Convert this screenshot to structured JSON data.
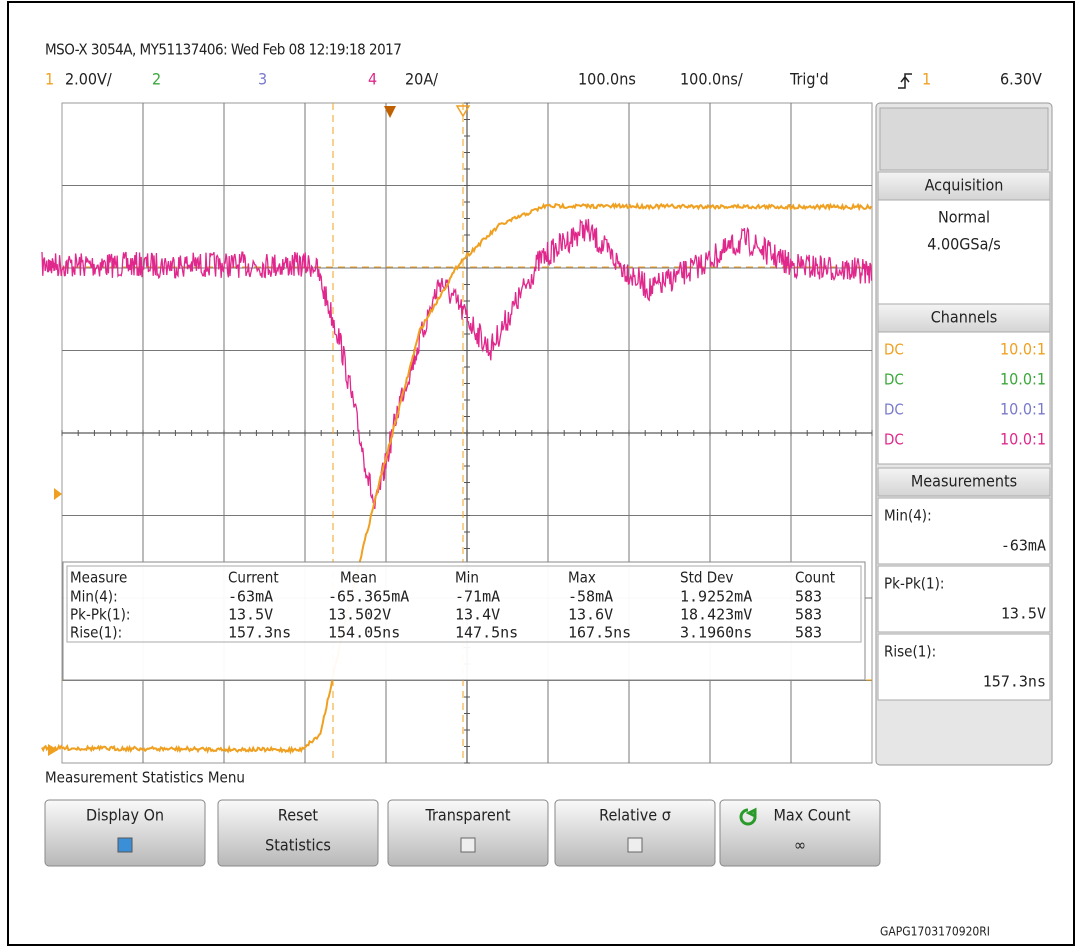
{
  "header": {
    "info": "MSO-X 3054A, MY51137406: Wed Feb 08 12:19:18 2017"
  },
  "channel_bar": {
    "ch1": "1",
    "ch1_scale": "2.00V/",
    "ch2": "2",
    "ch3": "3",
    "ch4": "4",
    "ch4_scale": "20A/",
    "delay": "100.0ns",
    "timebase": "100.0ns/",
    "status": "Trig'd",
    "trigger_source": "1",
    "trigger_level": "6.30V"
  },
  "side_panel": {
    "acquisition": {
      "title": "Acquisition",
      "mode": "Normal",
      "rate": "4.00GSa/s"
    },
    "channels": {
      "title": "Channels",
      "rows": [
        [
          "DC",
          "10.0:1"
        ],
        [
          "DC",
          "10.0:1"
        ],
        [
          "DC",
          "10.0:1"
        ],
        [
          "DC",
          "10.0:1"
        ]
      ]
    },
    "measurements": {
      "title": "Measurements",
      "items": [
        {
          "label": "Min(4):",
          "value": "-63mA"
        },
        {
          "label": "Pk-Pk(1):",
          "value": "13.5V"
        },
        {
          "label": "Rise(1):",
          "value": "157.3ns"
        }
      ]
    }
  },
  "stats": {
    "header": [
      "Measure",
      "Current",
      "Mean",
      "Min",
      "Max",
      "Std Dev",
      "Count"
    ],
    "rows": [
      [
        "Min(4):",
        "-63mA",
        "-65.365mA",
        "-71mA",
        "-58mA",
        "1.9252mA",
        "583"
      ],
      [
        "Pk-Pk(1):",
        "13.5V",
        "13.502V",
        "13.4V",
        "13.6V",
        "18.423mV",
        "583"
      ],
      [
        "Rise(1):",
        "157.3ns",
        "154.05ns",
        "147.5ns",
        "167.5ns",
        "3.1960ns",
        "583"
      ]
    ]
  },
  "menu": {
    "title": "Measurement Statistics Menu",
    "buttons": [
      {
        "lines": [
          "Display On"
        ]
      },
      {
        "lines": [
          "Reset",
          "Statistics"
        ]
      },
      {
        "lines": [
          "Transparent"
        ]
      },
      {
        "lines": [
          "Relative σ"
        ]
      },
      {
        "lines": [
          "Max Count",
          "∞"
        ]
      }
    ]
  },
  "footer": "GAPG1703170920RI"
}
